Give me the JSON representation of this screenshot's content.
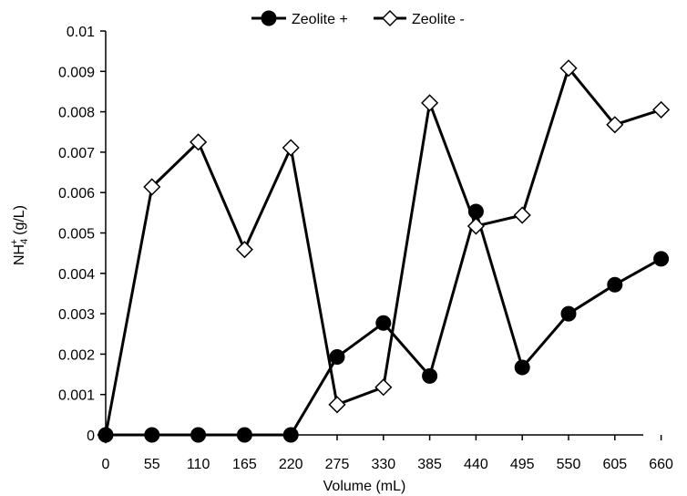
{
  "chart_data": {
    "type": "line",
    "xlabel": "Volume (mL)",
    "ylabel": "NH4+ (g/L)",
    "ylabel_parts": {
      "base": "NH",
      "sub": "4",
      "sup": "+",
      "unit": " (g/L)"
    },
    "categories": [
      "0",
      "55",
      "110",
      "165",
      "220",
      "275",
      "330",
      "385",
      "440",
      "495",
      "550",
      "605",
      "660"
    ],
    "y_ticks": [
      "0",
      "0.001",
      "0.002",
      "0.003",
      "0.004",
      "0.005",
      "0.006",
      "0.007",
      "0.008",
      "0.009",
      "0.01"
    ],
    "ylim": [
      0,
      0.01
    ],
    "grid": false,
    "legend_position": "top-center",
    "series": [
      {
        "name": "Zeolite +",
        "marker": "filled-circle",
        "color": "#000000",
        "values": [
          0,
          0,
          0,
          0,
          0,
          0.00193,
          0.00277,
          0.00146,
          0.00553,
          0.00167,
          0.003,
          0.00372,
          0.00436
        ]
      },
      {
        "name": "Zeolite -",
        "marker": "open-diamond",
        "color": "#000000",
        "values": [
          0,
          0.00614,
          0.00725,
          0.00459,
          0.00711,
          0.00075,
          0.00118,
          0.00822,
          0.00517,
          0.00544,
          0.00908,
          0.00768,
          0.00805
        ]
      }
    ]
  }
}
